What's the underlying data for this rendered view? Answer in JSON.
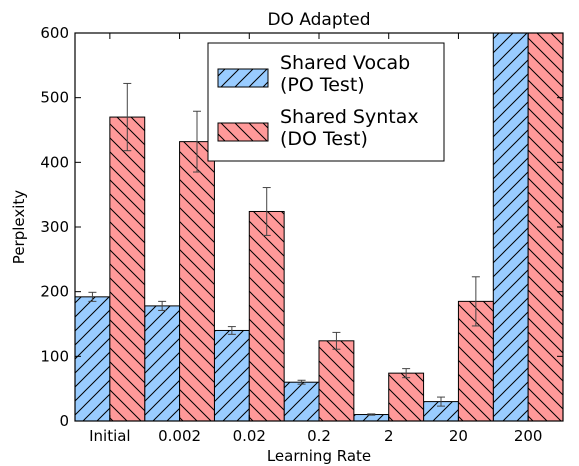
{
  "chart_data": {
    "type": "bar",
    "title": "DO Adapted",
    "xlabel": "Learning Rate",
    "ylabel": "Perplexity",
    "categories": [
      "Initial",
      "0.002",
      "0.02",
      "0.2",
      "2",
      "20",
      "200"
    ],
    "ylim": [
      0,
      600
    ],
    "yticks": [
      0,
      100,
      200,
      300,
      400,
      500,
      600
    ],
    "series": [
      {
        "name_lines": [
          "Shared Vocab",
          "(PO Test)"
        ],
        "color": "#99ccff",
        "hatch": "forward",
        "values": [
          192,
          178,
          140,
          60,
          10,
          30,
          600
        ],
        "errors": [
          7,
          7,
          6,
          3,
          1,
          7,
          0
        ]
      },
      {
        "name_lines": [
          "Shared Syntax",
          "(DO Test)"
        ],
        "color": "#ff9999",
        "hatch": "back",
        "values": [
          470,
          432,
          324,
          124,
          74,
          185,
          600
        ],
        "errors": [
          52,
          47,
          37,
          13,
          7,
          38,
          0
        ]
      }
    ],
    "legend_position": "top-center",
    "grid": false
  }
}
